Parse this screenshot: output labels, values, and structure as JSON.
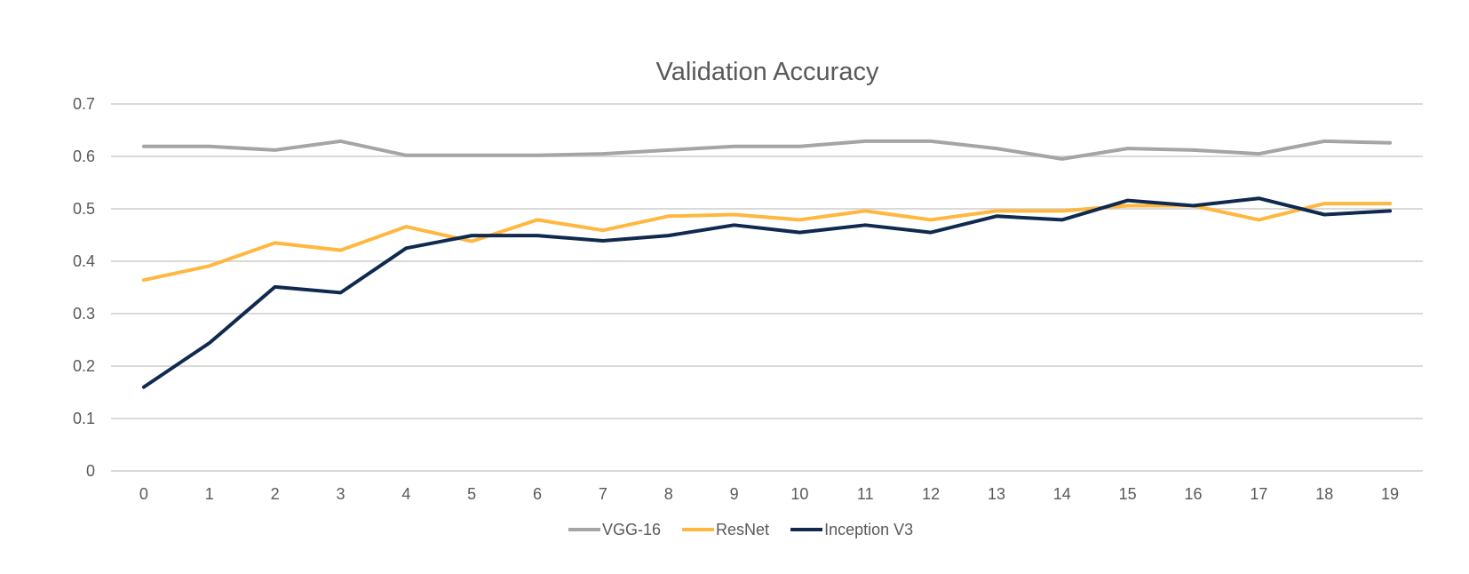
{
  "chart_data": {
    "type": "line",
    "title": "Validation Accuracy",
    "xlabel": "",
    "ylabel": "",
    "x": [
      0,
      1,
      2,
      3,
      4,
      5,
      6,
      7,
      8,
      9,
      10,
      11,
      12,
      13,
      14,
      15,
      16,
      17,
      18,
      19
    ],
    "ylim": [
      0,
      0.7
    ],
    "yticks": [
      0,
      0.1,
      0.2,
      0.3,
      0.4,
      0.5,
      0.6,
      0.7
    ],
    "ytick_labels": [
      "0",
      "0.1",
      "0.2",
      "0.3",
      "0.4",
      "0.5",
      "0.6",
      "0.7"
    ],
    "grid": true,
    "legend_position": "bottom",
    "series": [
      {
        "name": "VGG-16",
        "color": "#a5a5a5",
        "values": [
          0.619,
          0.619,
          0.612,
          0.629,
          0.602,
          0.602,
          0.602,
          0.605,
          0.612,
          0.619,
          0.619,
          0.629,
          0.629,
          0.615,
          0.595,
          0.615,
          0.612,
          0.605,
          0.629,
          0.626
        ]
      },
      {
        "name": "ResNet",
        "color": "#ffb740",
        "values": [
          0.364,
          0.391,
          0.435,
          0.421,
          0.466,
          0.438,
          0.479,
          0.459,
          0.486,
          0.489,
          0.479,
          0.496,
          0.479,
          0.496,
          0.496,
          0.506,
          0.506,
          0.479,
          0.51,
          0.51
        ]
      },
      {
        "name": "Inception V3",
        "color": "#0f2a4e",
        "values": [
          0.16,
          0.244,
          0.351,
          0.34,
          0.425,
          0.449,
          0.449,
          0.439,
          0.449,
          0.469,
          0.455,
          0.469,
          0.455,
          0.486,
          0.479,
          0.516,
          0.506,
          0.52,
          0.489,
          0.496
        ]
      }
    ]
  }
}
